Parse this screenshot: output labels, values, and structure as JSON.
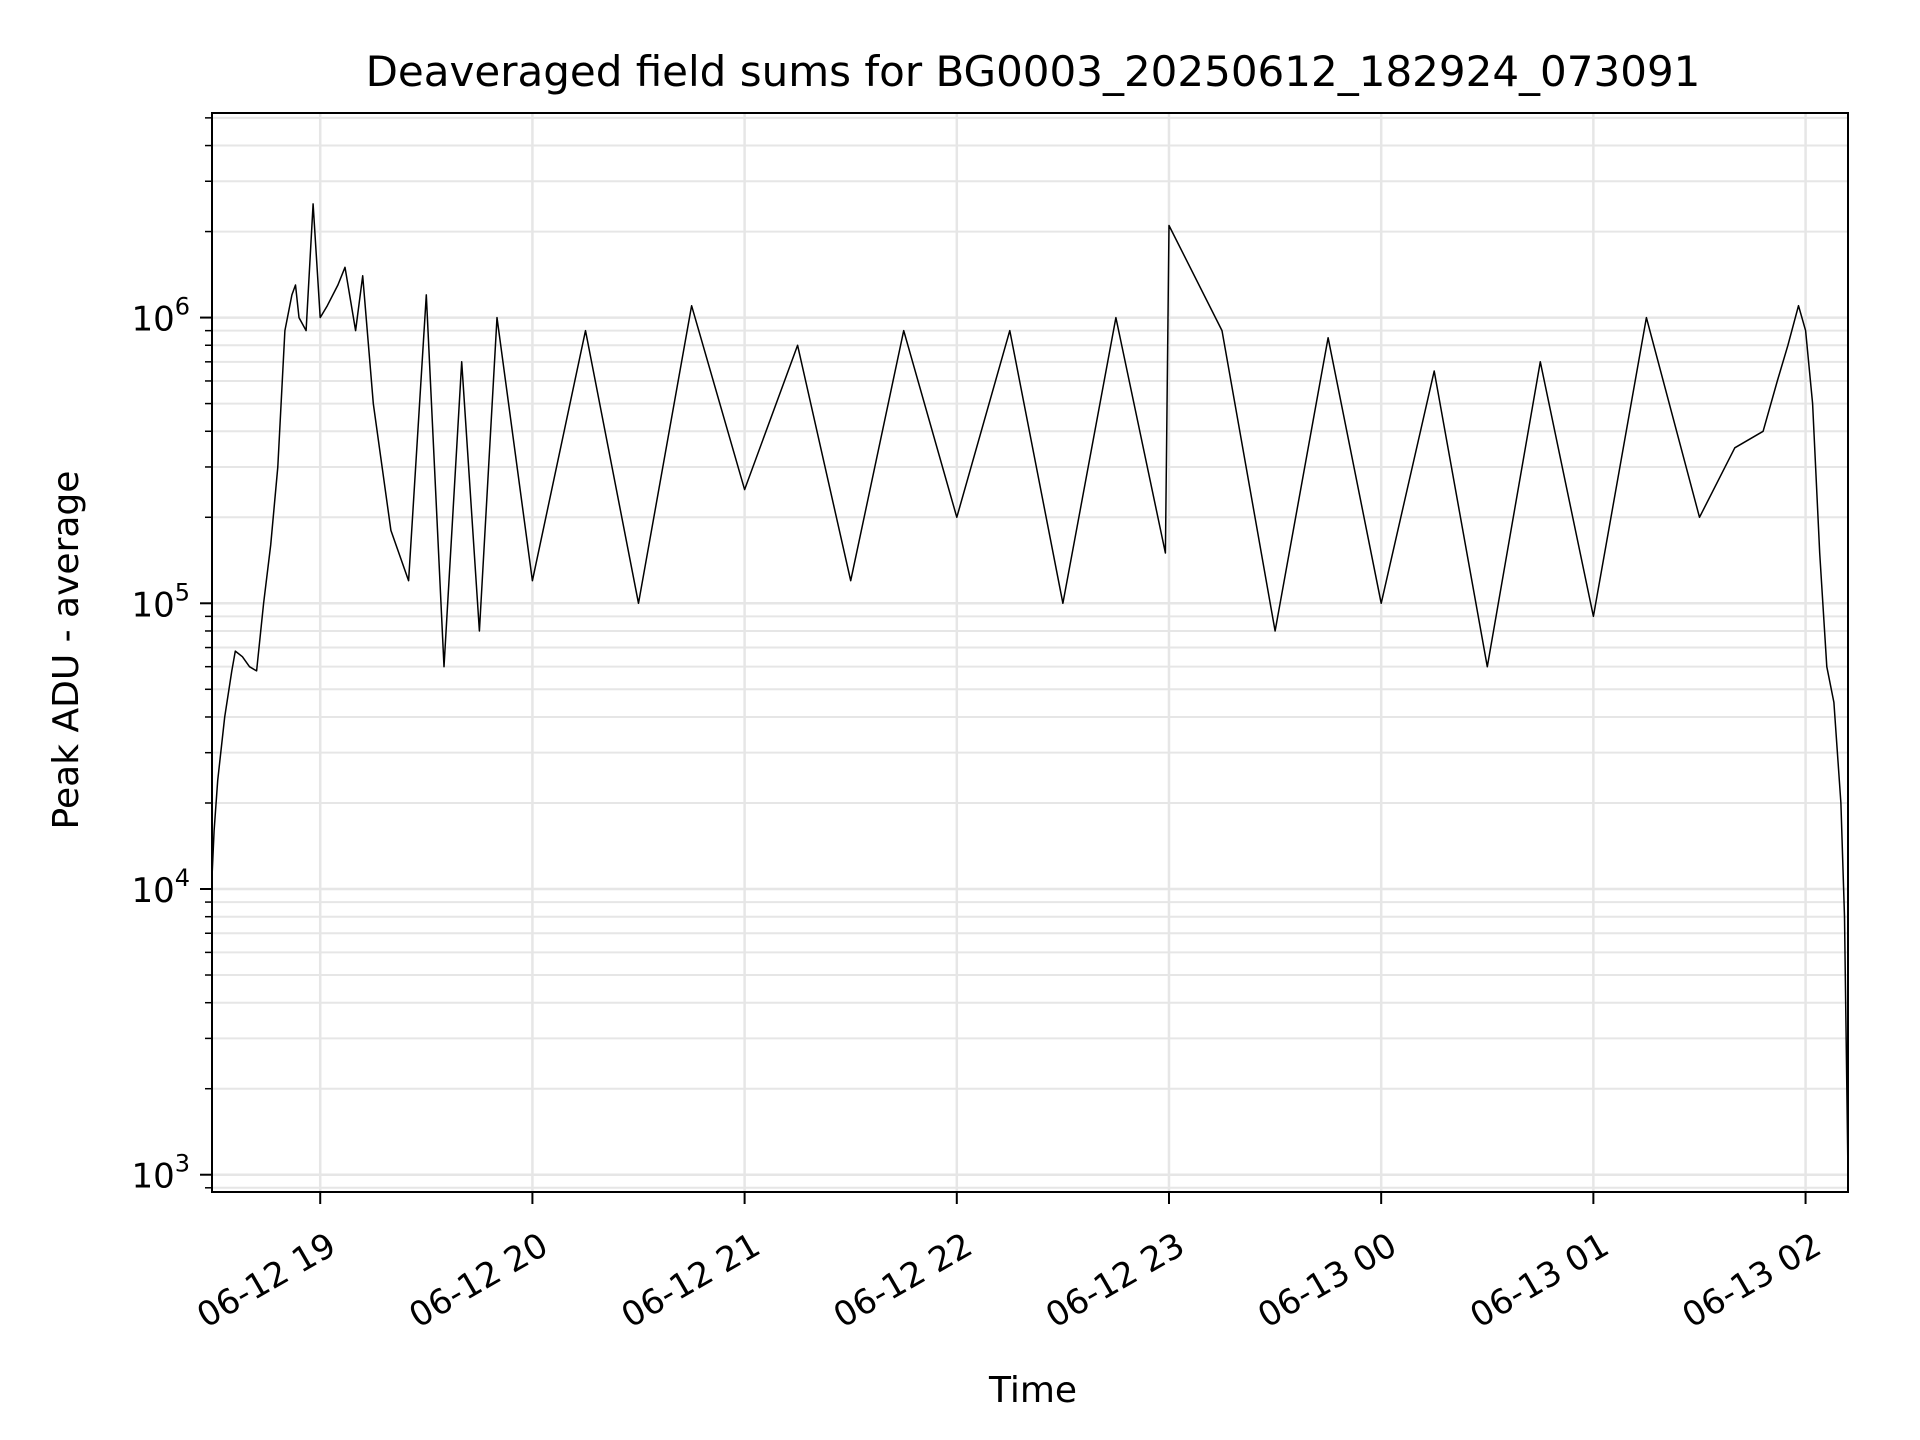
{
  "chart_data": {
    "type": "line",
    "title": "Deaveraged field sums for BG0003_20250612_182924_073091",
    "xlabel": "Time",
    "ylabel": "Peak ADU - average",
    "yscale": "log",
    "ylim": [
      870,
      5200000
    ],
    "xlim": [
      "2025-06-12 18:29:24",
      "2025-06-13 02:12:00"
    ],
    "grid": true,
    "line_color": "#000000",
    "grid_color": "#e6e6e6",
    "xticks": [
      {
        "t": "2025-06-12 19:00",
        "label": "06-12 19"
      },
      {
        "t": "2025-06-12 20:00",
        "label": "06-12 20"
      },
      {
        "t": "2025-06-12 21:00",
        "label": "06-12 21"
      },
      {
        "t": "2025-06-12 22:00",
        "label": "06-12 22"
      },
      {
        "t": "2025-06-12 23:00",
        "label": "06-12 23"
      },
      {
        "t": "2025-06-13 00:00",
        "label": "06-13 00"
      },
      {
        "t": "2025-06-13 01:00",
        "label": "06-13 01"
      },
      {
        "t": "2025-06-13 02:00",
        "label": "06-13 02"
      }
    ],
    "yticks": [
      {
        "value": 1000,
        "base": "10",
        "exp": "3"
      },
      {
        "value": 10000,
        "base": "10",
        "exp": "4"
      },
      {
        "value": 100000,
        "base": "10",
        "exp": "5"
      },
      {
        "value": 1000000,
        "base": "10",
        "exp": "6"
      }
    ],
    "series": [
      {
        "x": [
          "2025-06-12 18:29:24",
          "2025-06-12 18:30:00",
          "2025-06-12 18:31:00",
          "2025-06-12 18:33:00",
          "2025-06-12 18:35:00",
          "2025-06-12 18:36:00",
          "2025-06-12 18:38:00",
          "2025-06-12 18:40:00",
          "2025-06-12 18:42:00",
          "2025-06-12 18:44:00",
          "2025-06-12 18:46:00",
          "2025-06-12 18:48:00",
          "2025-06-12 18:50:00",
          "2025-06-12 18:52:00",
          "2025-06-12 18:53:00",
          "2025-06-12 18:54:00",
          "2025-06-12 18:56:00",
          "2025-06-12 18:58:00",
          "2025-06-12 19:00:00",
          "2025-06-12 19:02:00",
          "2025-06-12 19:05:00",
          "2025-06-12 19:07:00",
          "2025-06-12 19:10:00",
          "2025-06-12 19:12:00",
          "2025-06-12 19:15:00",
          "2025-06-12 19:20:00",
          "2025-06-12 19:25:00",
          "2025-06-12 19:30:00",
          "2025-06-12 19:35:00",
          "2025-06-12 19:40:00",
          "2025-06-12 19:45:00",
          "2025-06-12 19:50:00",
          "2025-06-12 20:00:00",
          "2025-06-12 20:15:00",
          "2025-06-12 20:30:00",
          "2025-06-12 20:45:00",
          "2025-06-12 21:00:00",
          "2025-06-12 21:15:00",
          "2025-06-12 21:30:00",
          "2025-06-12 21:45:00",
          "2025-06-12 22:00:00",
          "2025-06-12 22:15:00",
          "2025-06-12 22:30:00",
          "2025-06-12 22:45:00",
          "2025-06-12 22:59:00",
          "2025-06-12 23:00:00",
          "2025-06-12 23:15:00",
          "2025-06-12 23:30:00",
          "2025-06-12 23:45:00",
          "2025-06-13 00:00:00",
          "2025-06-13 00:15:00",
          "2025-06-13 00:30:00",
          "2025-06-13 00:45:00",
          "2025-06-13 01:00:00",
          "2025-06-13 01:15:00",
          "2025-06-13 01:30:00",
          "2025-06-13 01:40:00",
          "2025-06-13 01:48:00",
          "2025-06-13 01:52:00",
          "2025-06-13 01:55:00",
          "2025-06-13 01:58:00",
          "2025-06-13 02:00:00",
          "2025-06-13 02:02:00",
          "2025-06-13 02:04:00",
          "2025-06-13 02:06:00",
          "2025-06-13 02:08:00",
          "2025-06-13 02:10:00",
          "2025-06-13 02:11:00",
          "2025-06-13 02:12:00"
        ],
        "y": [
          11000,
          16000,
          24000,
          40000,
          58000,
          68000,
          65000,
          60000,
          58000,
          100000,
          160000,
          300000,
          900000,
          1200000,
          1300000,
          1000000,
          900000,
          2500000,
          1000000,
          1100000,
          1300000,
          1500000,
          900000,
          1400000,
          500000,
          180000,
          120000,
          1200000,
          60000,
          700000,
          80000,
          1000000,
          120000,
          900000,
          100000,
          1100000,
          250000,
          800000,
          120000,
          900000,
          200000,
          900000,
          100000,
          1000000,
          150000,
          2100000,
          900000,
          80000,
          850000,
          100000,
          650000,
          60000,
          700000,
          90000,
          1000000,
          200000,
          350000,
          400000,
          600000,
          800000,
          1100000,
          900000,
          500000,
          150000,
          60000,
          45000,
          20000,
          8000,
          1000
        ]
      }
    ]
  }
}
